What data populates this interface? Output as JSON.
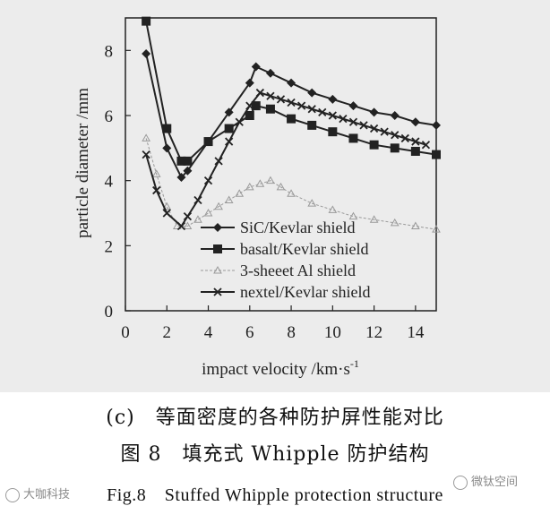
{
  "chart_data": {
    "type": "line",
    "xlabel": "impact velocity /km·s",
    "xlabel_sup": "-1",
    "ylabel": "particle diameter /mm",
    "xlim": [
      0,
      15
    ],
    "ylim": [
      0,
      9
    ],
    "x_ticks": [
      0,
      2,
      4,
      6,
      8,
      10,
      12,
      14
    ],
    "y_ticks": [
      0,
      2,
      4,
      6,
      8
    ],
    "grid": false,
    "legend_position": "bottom-right",
    "series": [
      {
        "name": "SiC/Kevlar shield",
        "color": "#222222",
        "marker": "diamond",
        "x": [
          1,
          2,
          2.7,
          3,
          4,
          5,
          6,
          6.3,
          7,
          8,
          9,
          10,
          11,
          12,
          13,
          14,
          15
        ],
        "y": [
          7.9,
          5.0,
          4.1,
          4.3,
          5.2,
          6.1,
          7.0,
          7.5,
          7.3,
          7.0,
          6.7,
          6.5,
          6.3,
          6.1,
          6.0,
          5.8,
          5.7
        ]
      },
      {
        "name": "basalt/Kevlar shield",
        "color": "#222222",
        "marker": "square",
        "x": [
          1,
          2,
          2.7,
          3,
          4,
          5,
          6,
          6.3,
          7,
          8,
          9,
          10,
          11,
          12,
          13,
          14,
          15
        ],
        "y": [
          8.9,
          5.6,
          4.6,
          4.6,
          5.2,
          5.6,
          6.0,
          6.3,
          6.2,
          5.9,
          5.7,
          5.5,
          5.3,
          5.1,
          5.0,
          4.9,
          4.8
        ]
      },
      {
        "name": "3-sheeet Al shield",
        "color": "#9a9a9a",
        "marker": "triangle",
        "x": [
          1,
          1.5,
          2,
          2.5,
          3,
          3.5,
          4,
          4.5,
          5,
          5.5,
          6,
          6.5,
          7,
          7.5,
          8,
          9,
          10,
          11,
          12,
          13,
          14,
          15
        ],
        "y": [
          5.3,
          4.2,
          3.2,
          2.6,
          2.6,
          2.8,
          3.0,
          3.2,
          3.4,
          3.6,
          3.8,
          3.9,
          4.0,
          3.8,
          3.6,
          3.3,
          3.1,
          2.9,
          2.8,
          2.7,
          2.6,
          2.5
        ]
      },
      {
        "name": "nextel/Kevlar shield",
        "color": "#222222",
        "marker": "x",
        "x": [
          1,
          1.5,
          2,
          2.7,
          3,
          3.5,
          4,
          4.5,
          5,
          5.5,
          6,
          6.5,
          7,
          7.5,
          8,
          8.5,
          9,
          9.5,
          10,
          10.5,
          11,
          11.5,
          12,
          12.5,
          13,
          13.5,
          14,
          14.5
        ],
        "y": [
          4.8,
          3.7,
          3.0,
          2.6,
          2.9,
          3.4,
          4.0,
          4.6,
          5.2,
          5.8,
          6.3,
          6.7,
          6.6,
          6.5,
          6.4,
          6.3,
          6.2,
          6.1,
          6.0,
          5.9,
          5.8,
          5.7,
          5.6,
          5.5,
          5.4,
          5.3,
          5.2,
          5.1
        ]
      }
    ]
  },
  "figure": {
    "caption_sub": "(c)　等面密度的各种防护屏性能对比",
    "caption_cn": "图 8　填充式 Whipple 防护结构",
    "caption_en": "Fig.8　Stuffed Whipple protection structure"
  },
  "watermarks": {
    "left": "大咖科技",
    "right": "微钛空间"
  }
}
